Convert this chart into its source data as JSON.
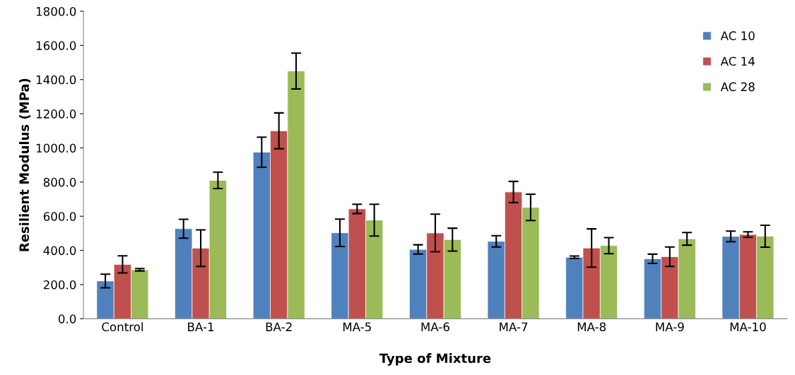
{
  "chart_data": {
    "type": "bar",
    "xlabel": "Type of Mixture",
    "ylabel": "Resilient Modulus (MPa)",
    "categories": [
      "Control",
      "BA-1",
      "BA-2",
      "MA-5",
      "MA-6",
      "MA-7",
      "MA-8",
      "MA-9",
      "MA-10"
    ],
    "series": [
      {
        "name": "AC 10",
        "color": "#4f81bd",
        "values": [
          221,
          527,
          975,
          503,
          406,
          453,
          360,
          351,
          482
        ],
        "errors": [
          40,
          55,
          88,
          80,
          27,
          33,
          7,
          27,
          31
        ]
      },
      {
        "name": "AC 14",
        "color": "#c0504d",
        "values": [
          318,
          413,
          1100,
          643,
          502,
          742,
          414,
          363,
          493
        ],
        "errors": [
          50,
          107,
          105,
          27,
          110,
          62,
          112,
          57,
          16
        ]
      },
      {
        "name": "AC 28",
        "color": "#9bbb59",
        "values": [
          287,
          810,
          1450,
          577,
          463,
          652,
          428,
          468,
          483
        ],
        "errors": [
          7,
          48,
          105,
          93,
          67,
          77,
          47,
          37,
          64
        ]
      }
    ],
    "ylim": [
      0,
      1800
    ],
    "yticks": [
      {
        "value": 0,
        "label": "0.0"
      },
      {
        "value": 200,
        "label": "200.0"
      },
      {
        "value": 400,
        "label": "400.0"
      },
      {
        "value": 600,
        "label": "600.0"
      },
      {
        "value": 800,
        "label": "800.0"
      },
      {
        "value": 1000,
        "label": "1000.0"
      },
      {
        "value": 1200,
        "label": "1200.0"
      },
      {
        "value": 1400,
        "label": "1400.0"
      },
      {
        "value": 1600,
        "label": "1600.0"
      },
      {
        "value": 1800,
        "label": "1800.0"
      }
    ],
    "legend": "top right",
    "grid": false
  }
}
